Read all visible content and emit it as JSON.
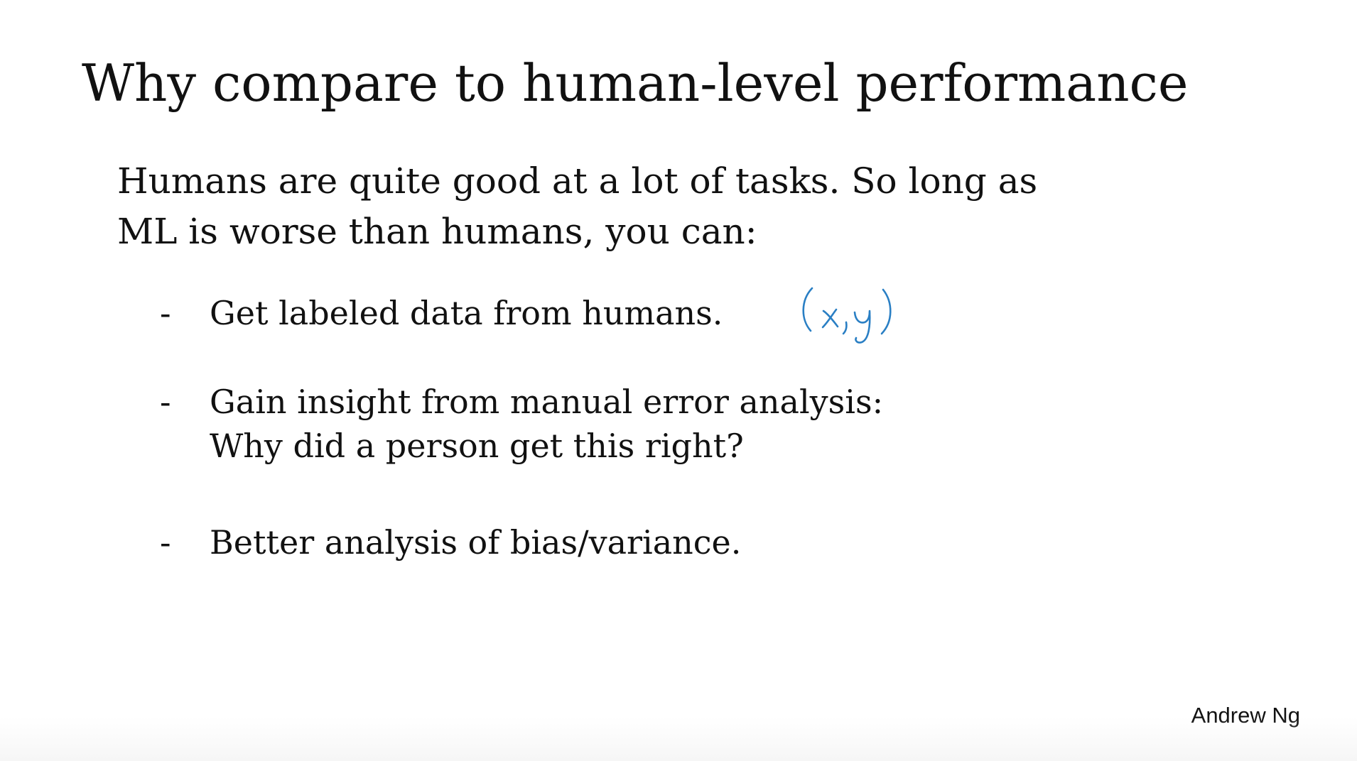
{
  "slide": {
    "title": "Why compare to human-level performance",
    "intro": {
      "line1": "Humans are quite good at a lot of tasks. So long as",
      "line2": "ML is worse than humans, you can:"
    },
    "bullets": [
      {
        "marker": "-",
        "lines": [
          "Get labeled data from humans."
        ]
      },
      {
        "marker": "-",
        "lines": [
          "Gain insight from manual error analysis:",
          "Why did a person get this right?"
        ]
      },
      {
        "marker": "-",
        "lines": [
          "Better analysis of bias/variance."
        ]
      }
    ],
    "annotation": {
      "text": "(x,y)",
      "color": "#2a7fc4"
    },
    "author": "Andrew Ng"
  }
}
